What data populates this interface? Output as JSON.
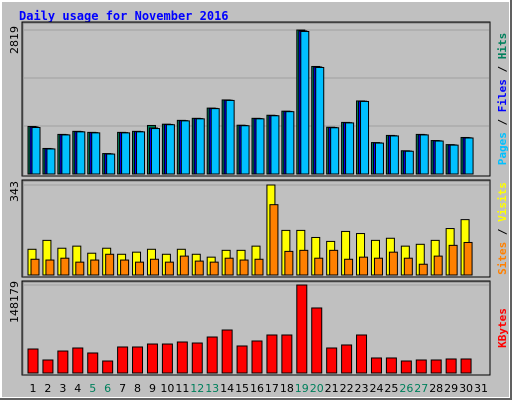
{
  "chart_data": {
    "type": "bar",
    "title": "Daily usage for November 2016",
    "legend_separator": " / ",
    "categories": [
      "1",
      "2",
      "3",
      "4",
      "5",
      "6",
      "7",
      "8",
      "9",
      "10",
      "11",
      "12",
      "13",
      "14",
      "15",
      "16",
      "17",
      "18",
      "19",
      "20",
      "21",
      "22",
      "23",
      "24",
      "25",
      "26",
      "27",
      "28",
      "29",
      "30",
      "31"
    ],
    "category_colors": [
      "#000000",
      "#000000",
      "#000000",
      "#000000",
      "#00805c",
      "#00805c",
      "#000000",
      "#000000",
      "#000000",
      "#000000",
      "#000000",
      "#00805c",
      "#00805c",
      "#000000",
      "#000000",
      "#000000",
      "#000000",
      "#000000",
      "#00805c",
      "#00805c",
      "#000000",
      "#000000",
      "#000000",
      "#000000",
      "#000000",
      "#00805c",
      "#00805c",
      "#000000",
      "#000000",
      "#000000",
      "#000000"
    ],
    "panels": [
      {
        "ylim": [
          0,
          2819
        ],
        "yticks": [
          2819
        ],
        "series": [
          {
            "name": "Hits",
            "color": "#00805c",
            "values": [
              930,
              500,
              775,
              835,
              815,
              400,
              815,
              835,
              950,
              975,
              1050,
              1090,
              1290,
              1450,
              955,
              1090,
              1150,
              1230,
              2819,
              2105,
              915,
              1010,
              1430,
              615,
              755,
              455,
              775,
              655,
              575,
              715,
              null
            ]
          },
          {
            "name": "Files",
            "color": "#0000ff",
            "values": [
              920,
              495,
              770,
              830,
              810,
              395,
              810,
              830,
              900,
              970,
              1045,
              1085,
              1285,
              1445,
              950,
              1085,
              1145,
              1225,
              2800,
              2095,
              910,
              1005,
              1425,
              610,
              750,
              450,
              770,
              650,
              570,
              710,
              null
            ]
          },
          {
            "name": "Pages",
            "color": "#00c0ff",
            "values": [
              910,
              490,
              765,
              825,
              805,
              390,
              805,
              825,
              890,
              965,
              1040,
              1080,
              1280,
              1440,
              945,
              1080,
              1140,
              1220,
              2790,
              2085,
              905,
              1000,
              1420,
              605,
              745,
              445,
              765,
              645,
              565,
              705,
              null
            ]
          }
        ]
      },
      {
        "ylim": [
          0,
          343
        ],
        "yticks": [
          343
        ],
        "series": [
          {
            "name": "Visits",
            "color": "#ffff00",
            "values": [
              98,
              132,
              102,
              110,
              83,
              102,
              79,
              87,
              98,
              79,
              98,
              79,
              68,
              94,
              94,
              110,
              343,
              170,
              170,
              143,
              128,
              166,
              158,
              132,
              140,
              110,
              117,
              132,
              177,
              211,
              null
            ]
          },
          {
            "name": "Sites",
            "color": "#ff8000",
            "values": [
              60,
              57,
              64,
              49,
              57,
              79,
              57,
              49,
              60,
              49,
              72,
              53,
              49,
              64,
              57,
              60,
              268,
              90,
              94,
              64,
              94,
              60,
              68,
              64,
              87,
              64,
              41,
              72,
              113,
              124,
              null
            ]
          }
        ]
      },
      {
        "ylim": [
          0,
          148179
        ],
        "yticks": [
          148179
        ],
        "series": [
          {
            "name": "KBytes",
            "color": "#ff0000",
            "values": [
              40400,
              21900,
              37000,
              42100,
              33700,
              20200,
              43800,
              43800,
              48800,
              48800,
              52200,
              50500,
              60600,
              72400,
              45500,
              53900,
              64000,
              64000,
              148179,
              109500,
              42100,
              47200,
              64000,
              25300,
              25300,
              20200,
              21900,
              21900,
              23600,
              23600,
              null
            ]
          }
        ]
      }
    ]
  }
}
